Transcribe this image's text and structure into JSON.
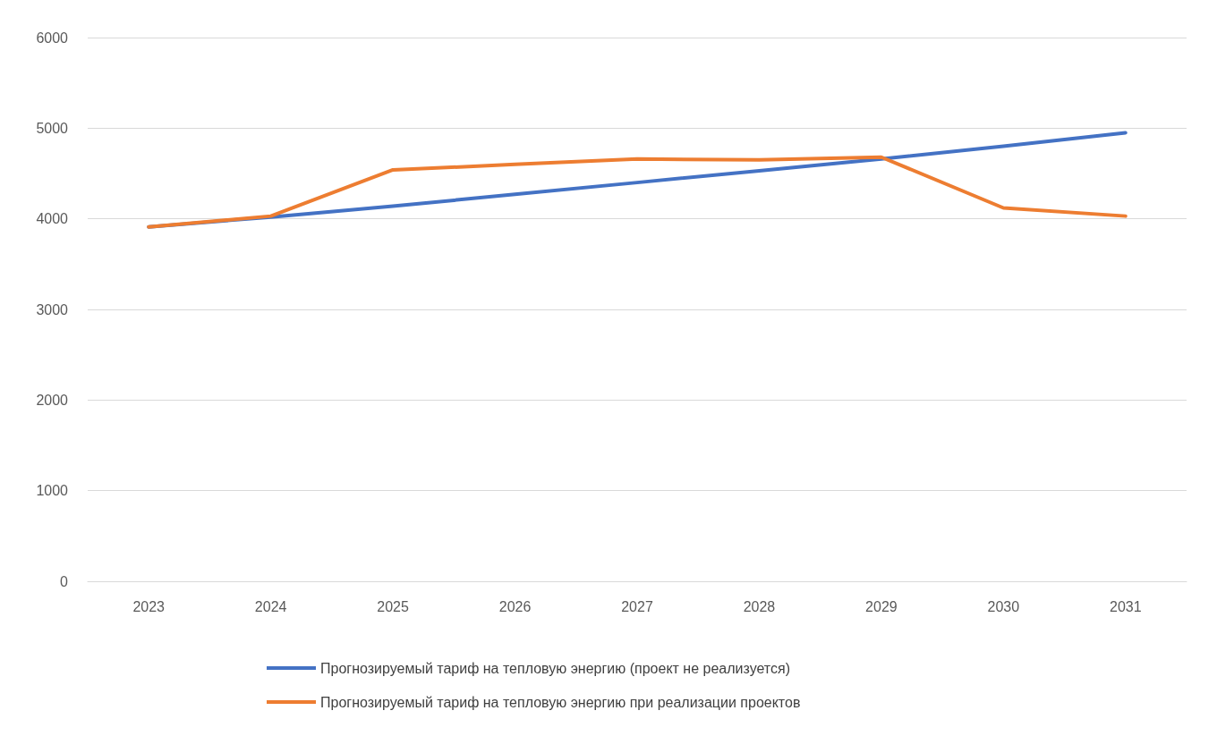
{
  "chart_data": {
    "type": "line",
    "categories": [
      "2023",
      "2024",
      "2025",
      "2026",
      "2027",
      "2028",
      "2029",
      "2030",
      "2031"
    ],
    "series": [
      {
        "name": "Прогнозируемый тариф на тепловую энергию (проект не реализуется)",
        "color": "#4472c4",
        "values": [
          3910,
          4020,
          4140,
          4270,
          4400,
          4530,
          4660,
          4800,
          4950
        ]
      },
      {
        "name": "Прогнозируемый тариф на тепловую энергию при реализации проектов",
        "color": "#ed7d31",
        "values": [
          3910,
          4030,
          4540,
          4600,
          4660,
          4650,
          4680,
          4120,
          4030
        ]
      }
    ],
    "ylim": [
      0,
      6000
    ],
    "yticks": [
      0,
      1000,
      2000,
      3000,
      4000,
      5000,
      6000
    ],
    "grid": "y",
    "legend": "bottom",
    "marker": "none",
    "line_style": "solid"
  }
}
